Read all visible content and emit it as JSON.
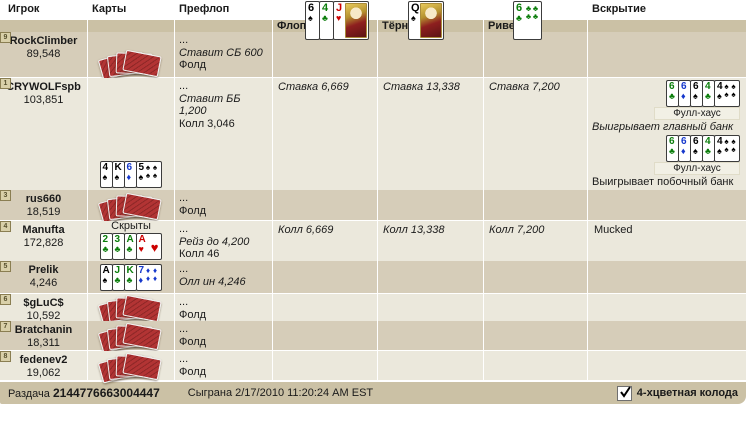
{
  "theme": {
    "vars": {
      "bar": "#cbc1a5",
      "rowdark": "#d6cdb9",
      "rowlight": "#ebe8dc",
      "cardback": "#b23434"
    },
    "suits": {
      "s": {
        "glyph": "♠",
        "color": "#000000"
      },
      "h": {
        "glyph": "♥",
        "color": "#cc0000"
      },
      "d": {
        "glyph": "♦",
        "color": "#1638cc"
      },
      "c": {
        "glyph": "♣",
        "color": "#0a7d0a"
      }
    }
  },
  "header": {
    "col_player": "Игрок",
    "col_cards": "Карты",
    "col_preflop": "Префлоп",
    "col_flop": "Флоп",
    "col_turn": "Тёрн",
    "col_river": "Ривер",
    "col_showdown": "Вскрытие",
    "board": {
      "flop": [
        {
          "r": "6",
          "s": "s"
        },
        {
          "r": "4",
          "s": "c"
        },
        {
          "r": "J",
          "s": "h"
        }
      ],
      "turn": [
        {
          "r": "Q",
          "s": "s"
        }
      ],
      "river": [
        {
          "r": "6",
          "s": "c"
        }
      ]
    }
  },
  "players": [
    {
      "seat": "9",
      "name": "RockClimber",
      "stack": "89,548",
      "preflop": [
        "...",
        "Ставит СБ 600",
        "Фолд"
      ]
    },
    {
      "seat": "1",
      "name": "CRYWOLFspb",
      "stack": "103,851",
      "hole": [
        {
          "r": "4",
          "s": "s"
        },
        {
          "r": "K",
          "s": "s"
        },
        {
          "r": "6",
          "s": "d"
        },
        {
          "r": "5",
          "s": "s"
        }
      ],
      "preflop": [
        "...",
        "Ставит ББ 1,200",
        "Колл 3,046"
      ],
      "flop": "Ставка 6,669",
      "turn": "Ставка 13,338",
      "river": "Ставка 7,200",
      "showdown": {
        "hand": [
          {
            "r": "6",
            "s": "c"
          },
          {
            "r": "6",
            "s": "d"
          },
          {
            "r": "6",
            "s": "s"
          },
          {
            "r": "4",
            "s": "c"
          },
          {
            "r": "4",
            "s": "s"
          }
        ],
        "hand_name": "Фулл-хаус",
        "main_pot_text": "Выигрывает главный банк",
        "side_pot_text": "Выигрывает побочный банк"
      }
    },
    {
      "seat": "3",
      "name": "rus660",
      "stack": "18,519",
      "preflop": [
        "...",
        "Фолд"
      ]
    },
    {
      "seat": "4",
      "name": "Manufta",
      "stack": "172,828",
      "hole_label": "Скрыты",
      "hole": [
        {
          "r": "2",
          "s": "c"
        },
        {
          "r": "3",
          "s": "c"
        },
        {
          "r": "A",
          "s": "c"
        },
        {
          "r": "A",
          "s": "h"
        }
      ],
      "preflop": [
        "...",
        "Рейз до 4,200",
        "Колл 46"
      ],
      "flop": "Колл 6,669",
      "turn": "Колл 13,338",
      "river": "Колл 7,200",
      "showdown_text": "Mucked"
    },
    {
      "seat": "5",
      "name": "Prelik",
      "stack": "4,246",
      "hole": [
        {
          "r": "A",
          "s": "s"
        },
        {
          "r": "J",
          "s": "c"
        },
        {
          "r": "K",
          "s": "c"
        },
        {
          "r": "7",
          "s": "d"
        }
      ],
      "preflop": [
        "...",
        "Олл ин 4,246"
      ]
    },
    {
      "seat": "6",
      "name": "$gLuC$",
      "stack": "10,592",
      "preflop": [
        "...",
        "Фолд"
      ]
    },
    {
      "seat": "7",
      "name": "Bratchanin",
      "stack": "18,311",
      "preflop": [
        "...",
        "Фолд"
      ]
    },
    {
      "seat": "8",
      "name": "fedenev2",
      "stack": "19,062",
      "preflop": [
        "...",
        "Фолд"
      ]
    }
  ],
  "footer": {
    "hand_label": "Раздача",
    "hand_id": "2144776663004447",
    "played_label": "Сыграна",
    "played_at": "2/17/2010 11:20:24 AM EST",
    "deck_checkbox_label": "4-хцветная колода",
    "deck_checkbox_checked": true
  }
}
